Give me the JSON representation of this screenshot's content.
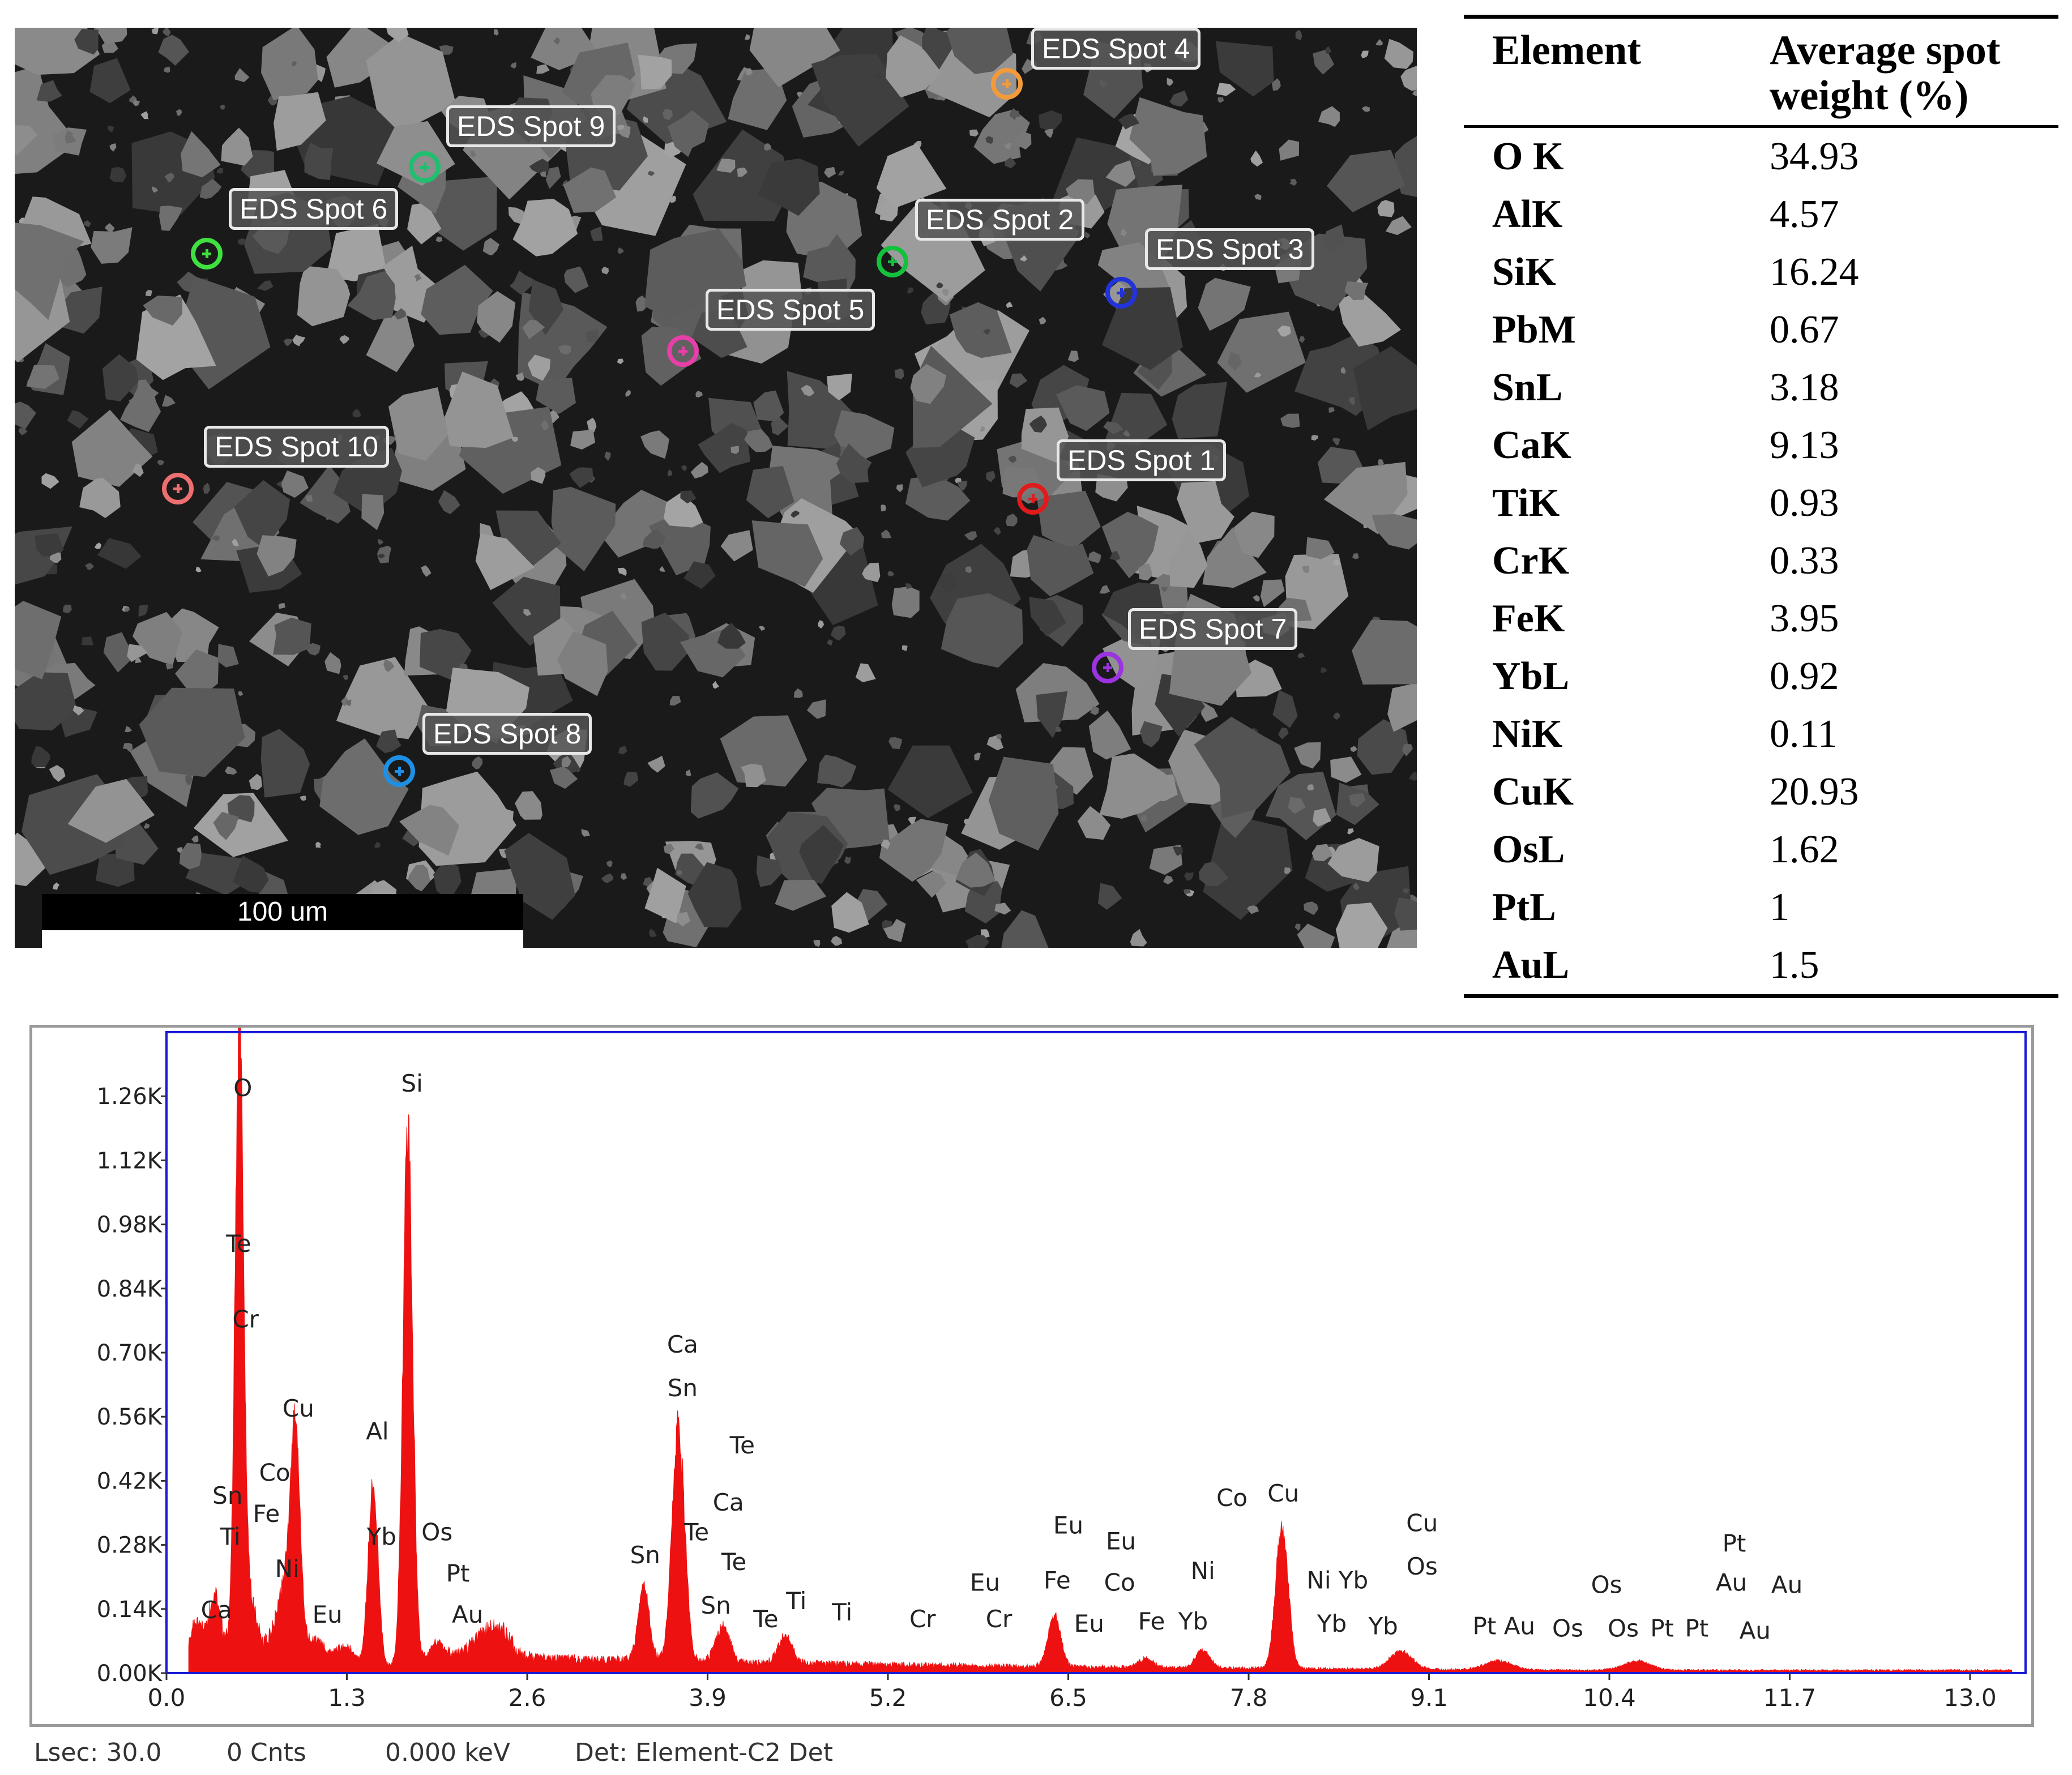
{
  "sem_image": {
    "scale_bar_label": "100 um",
    "spots": [
      {
        "label": "EDS Spot 4",
        "color": "#f39a3b"
      },
      {
        "label": "EDS Spot 9",
        "color": "#1fbf6f"
      },
      {
        "label": "EDS Spot 6",
        "color": "#3fe03f"
      },
      {
        "label": "EDS Spot 2",
        "color": "#13c13c"
      },
      {
        "label": "EDS Spot 3",
        "color": "#2233d8"
      },
      {
        "label": "EDS Spot 5",
        "color": "#e63fa8"
      },
      {
        "label": "EDS Spot 10",
        "color": "#ee6f6f"
      },
      {
        "label": "EDS Spot 1",
        "color": "#e01b1b"
      },
      {
        "label": "EDS Spot 7",
        "color": "#9b33e0"
      },
      {
        "label": "EDS Spot 8",
        "color": "#1f8fe3"
      }
    ]
  },
  "table": {
    "header_element": "Element",
    "header_weight": "Average spot weight (%)",
    "rows": [
      {
        "element": "O K",
        "weight": "34.93"
      },
      {
        "element": "AlK",
        "weight": "4.57"
      },
      {
        "element": "SiK",
        "weight": "16.24"
      },
      {
        "element": "PbM",
        "weight": "0.67"
      },
      {
        "element": "SnL",
        "weight": "3.18"
      },
      {
        "element": "CaK",
        "weight": "9.13"
      },
      {
        "element": "TiK",
        "weight": "0.93"
      },
      {
        "element": "CrK",
        "weight": "0.33"
      },
      {
        "element": "FeK",
        "weight": "3.95"
      },
      {
        "element": "YbL",
        "weight": "0.92"
      },
      {
        "element": "NiK",
        "weight": "0.11"
      },
      {
        "element": "CuK",
        "weight": "20.93"
      },
      {
        "element": "OsL",
        "weight": "1.62"
      },
      {
        "element": "PtL",
        "weight": "1"
      },
      {
        "element": "AuL",
        "weight": "1.5"
      }
    ]
  },
  "chart_data": {
    "type": "line",
    "xlabel": "",
    "ylabel": "",
    "xlim": [
      0,
      13.4
    ],
    "ylim": [
      0,
      1.4
    ],
    "x_ticks": [
      "0.0",
      "1.3",
      "2.6",
      "3.9",
      "5.2",
      "6.5",
      "7.8",
      "9.1",
      "10.4",
      "11.7",
      "13.0"
    ],
    "y_ticks": [
      "0.00K",
      "0.14K",
      "0.28K",
      "0.42K",
      "0.56K",
      "0.70K",
      "0.84K",
      "0.98K",
      "1.12K",
      "1.26K"
    ],
    "fill_color": "#ee1111",
    "frame_color": "#1a1ad6",
    "peaks": [
      {
        "x": 0.22,
        "y": 0.07,
        "w": 0.04
      },
      {
        "x": 0.35,
        "y": 0.12,
        "w": 0.04
      },
      {
        "x": 0.525,
        "y": 1.36,
        "w": 0.03
      },
      {
        "x": 0.6,
        "y": 0.1,
        "w": 0.05
      },
      {
        "x": 0.85,
        "y": 0.14,
        "w": 0.06
      },
      {
        "x": 0.93,
        "y": 0.46,
        "w": 0.035
      },
      {
        "x": 1.08,
        "y": 0.04,
        "w": 0.06
      },
      {
        "x": 1.29,
        "y": 0.04,
        "w": 0.06
      },
      {
        "x": 1.49,
        "y": 0.4,
        "w": 0.035
      },
      {
        "x": 1.74,
        "y": 1.16,
        "w": 0.035
      },
      {
        "x": 1.95,
        "y": 0.04,
        "w": 0.06
      },
      {
        "x": 2.35,
        "y": 0.05,
        "w": 0.12
      },
      {
        "x": 3.44,
        "y": 0.16,
        "w": 0.04
      },
      {
        "x": 3.69,
        "y": 0.51,
        "w": 0.045
      },
      {
        "x": 4.01,
        "y": 0.08,
        "w": 0.05
      },
      {
        "x": 4.46,
        "y": 0.06,
        "w": 0.05
      },
      {
        "x": 6.4,
        "y": 0.11,
        "w": 0.045
      },
      {
        "x": 7.06,
        "y": 0.02,
        "w": 0.05
      },
      {
        "x": 7.47,
        "y": 0.04,
        "w": 0.05
      },
      {
        "x": 8.04,
        "y": 0.31,
        "w": 0.045
      },
      {
        "x": 8.9,
        "y": 0.04,
        "w": 0.08
      },
      {
        "x": 9.6,
        "y": 0.02,
        "w": 0.1
      },
      {
        "x": 10.6,
        "y": 0.02,
        "w": 0.1
      }
    ],
    "annotations": [
      {
        "text": "O",
        "x": 0.55,
        "y": 1.26
      },
      {
        "text": "Te",
        "x": 0.52,
        "y": 0.92
      },
      {
        "text": "Cr",
        "x": 0.57,
        "y": 0.755
      },
      {
        "text": "Cu",
        "x": 0.95,
        "y": 0.56
      },
      {
        "text": "Co",
        "x": 0.78,
        "y": 0.42
      },
      {
        "text": "Sn",
        "x": 0.44,
        "y": 0.37
      },
      {
        "text": "Fe",
        "x": 0.72,
        "y": 0.33
      },
      {
        "text": "Ti",
        "x": 0.46,
        "y": 0.28
      },
      {
        "text": "Ni",
        "x": 0.87,
        "y": 0.21
      },
      {
        "text": "Ca",
        "x": 0.36,
        "y": 0.12
      },
      {
        "text": "Eu",
        "x": 1.16,
        "y": 0.11
      },
      {
        "text": "Al",
        "x": 1.52,
        "y": 0.51
      },
      {
        "text": "Si",
        "x": 1.77,
        "y": 1.27
      },
      {
        "text": "Yb",
        "x": 1.55,
        "y": 0.28
      },
      {
        "text": "Os",
        "x": 1.95,
        "y": 0.29
      },
      {
        "text": "Pt",
        "x": 2.1,
        "y": 0.2
      },
      {
        "text": "Au",
        "x": 2.17,
        "y": 0.11
      },
      {
        "text": "Ca",
        "x": 3.72,
        "y": 0.7
      },
      {
        "text": "Sn",
        "x": 3.72,
        "y": 0.605
      },
      {
        "text": "Te",
        "x": 4.15,
        "y": 0.48
      },
      {
        "text": "Ca",
        "x": 4.05,
        "y": 0.355
      },
      {
        "text": "Sn",
        "x": 3.45,
        "y": 0.24
      },
      {
        "text": "Te",
        "x": 3.82,
        "y": 0.29
      },
      {
        "text": "Te",
        "x": 4.09,
        "y": 0.225
      },
      {
        "text": "Sn",
        "x": 3.96,
        "y": 0.13
      },
      {
        "text": "Te",
        "x": 4.32,
        "y": 0.1
      },
      {
        "text": "Ti",
        "x": 4.54,
        "y": 0.14
      },
      {
        "text": "Ti",
        "x": 4.87,
        "y": 0.115
      },
      {
        "text": "Cr",
        "x": 5.45,
        "y": 0.1
      },
      {
        "text": "Eu",
        "x": 5.9,
        "y": 0.18
      },
      {
        "text": "Cr",
        "x": 6.0,
        "y": 0.1
      },
      {
        "text": "Eu",
        "x": 6.5,
        "y": 0.305
      },
      {
        "text": "Eu",
        "x": 6.88,
        "y": 0.27
      },
      {
        "text": "Fe",
        "x": 6.42,
        "y": 0.185
      },
      {
        "text": "Co",
        "x": 6.87,
        "y": 0.18
      },
      {
        "text": "Eu",
        "x": 6.65,
        "y": 0.09
      },
      {
        "text": "Fe",
        "x": 7.1,
        "y": 0.095
      },
      {
        "text": "Ni",
        "x": 7.47,
        "y": 0.205
      },
      {
        "text": "Yb",
        "x": 7.4,
        "y": 0.095
      },
      {
        "text": "Co",
        "x": 7.68,
        "y": 0.365
      },
      {
        "text": "Cu",
        "x": 8.05,
        "y": 0.375
      },
      {
        "text": "Ni Yb",
        "x": 8.44,
        "y": 0.185
      },
      {
        "text": "Yb",
        "x": 8.4,
        "y": 0.09
      },
      {
        "text": "Yb",
        "x": 8.77,
        "y": 0.085
      },
      {
        "text": "Cu",
        "x": 9.05,
        "y": 0.31
      },
      {
        "text": "Os",
        "x": 9.05,
        "y": 0.215
      },
      {
        "text": "Pt Au",
        "x": 9.64,
        "y": 0.085
      },
      {
        "text": "Os",
        "x": 10.38,
        "y": 0.175
      },
      {
        "text": "Os",
        "x": 10.1,
        "y": 0.08
      },
      {
        "text": "Os",
        "x": 10.5,
        "y": 0.08
      },
      {
        "text": "Pt",
        "x": 10.78,
        "y": 0.08
      },
      {
        "text": "Pt",
        "x": 11.03,
        "y": 0.08
      },
      {
        "text": "Pt",
        "x": 11.3,
        "y": 0.265
      },
      {
        "text": "Au",
        "x": 11.28,
        "y": 0.18
      },
      {
        "text": "Au",
        "x": 11.68,
        "y": 0.175
      },
      {
        "text": "Au",
        "x": 11.45,
        "y": 0.075
      }
    ]
  },
  "status_bar": {
    "lsec": "Lsec: 30.0",
    "cnts": "0 Cnts",
    "kev": "0.000 keV",
    "det": "Det: Element-C2 Det"
  }
}
